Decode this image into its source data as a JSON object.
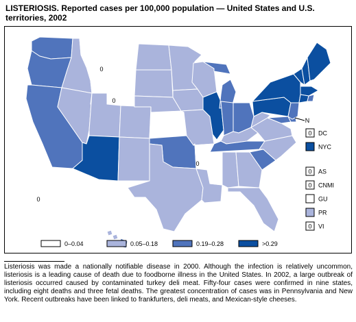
{
  "title": "LISTERIOSIS. Reported cases per 100,000 population — United States and U.S. territories, 2002",
  "colors": {
    "c0": "#ffffff",
    "c1": "#aab4dc",
    "c2": "#5074bc",
    "c3": "#0b4fa0",
    "border": "#000000"
  },
  "map_labels": {
    "montana": "0",
    "wyoming": "0",
    "arkansas": "0",
    "alaska": "0",
    "n_marker": "N"
  },
  "side_boxes": [
    {
      "code": "DC",
      "value_text": "0",
      "cls": "c0"
    },
    {
      "code": "NYC",
      "value_text": "",
      "cls": "c3"
    },
    {
      "code": "AS",
      "value_text": "0",
      "cls": "c0"
    },
    {
      "code": "CNMI",
      "value_text": "0",
      "cls": "c0"
    },
    {
      "code": "GU",
      "value_text": "",
      "cls": "c0"
    },
    {
      "code": "PR",
      "value_text": "",
      "cls": "c1"
    },
    {
      "code": "VI",
      "value_text": "0",
      "cls": "c0"
    }
  ],
  "legend": [
    {
      "label": "0–0.04",
      "cls": "c0"
    },
    {
      "label": "0.05–0.18",
      "cls": "c1"
    },
    {
      "label": "0.19–0.28",
      "cls": "c2"
    },
    {
      "label": ">0.29",
      "cls": "c3"
    }
  ],
  "footnote": "Listeriosis was made a nationally notifiable disease in 2000. Although the infection is relatively uncommon, listeriosis is a leading cause of death due to foodborne illness in the United States. In 2002, a large outbreak of listeriosis occurred caused by contaminated turkey deli meat. Fifty-four cases were confirmed in nine states, including eight deaths and three fetal deaths. The greatest concentration of cases was in Pennsylvania and New York. Recent outbreaks have been linked to frankfurters, deli meats, and Mexican-style cheeses."
}
